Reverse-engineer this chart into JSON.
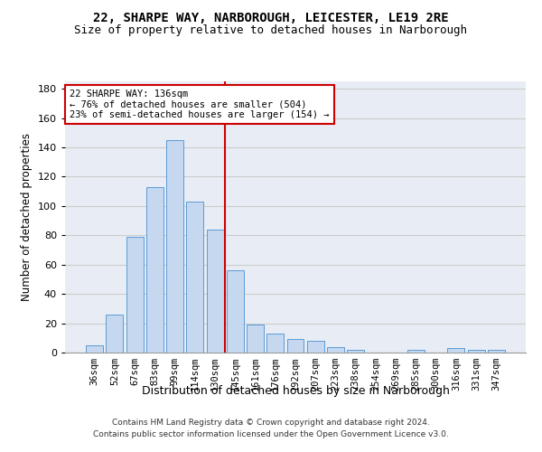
{
  "title1": "22, SHARPE WAY, NARBOROUGH, LEICESTER, LE19 2RE",
  "title2": "Size of property relative to detached houses in Narborough",
  "xlabel": "Distribution of detached houses by size in Narborough",
  "ylabel": "Number of detached properties",
  "categories": [
    "36sqm",
    "52sqm",
    "67sqm",
    "83sqm",
    "99sqm",
    "114sqm",
    "130sqm",
    "145sqm",
    "161sqm",
    "176sqm",
    "192sqm",
    "207sqm",
    "223sqm",
    "238sqm",
    "254sqm",
    "269sqm",
    "285sqm",
    "300sqm",
    "316sqm",
    "331sqm",
    "347sqm"
  ],
  "values": [
    5,
    26,
    79,
    113,
    145,
    103,
    84,
    56,
    19,
    13,
    9,
    8,
    4,
    2,
    0,
    0,
    2,
    0,
    3,
    2,
    2
  ],
  "bar_color": "#c5d8f0",
  "bar_edge_color": "#5b9bd5",
  "vline_color": "#cc0000",
  "annotation_text": "22 SHARPE WAY: 136sqm\n← 76% of detached houses are smaller (504)\n23% of semi-detached houses are larger (154) →",
  "annotation_box_color": "#ffffff",
  "annotation_box_edge": "#cc0000",
  "ylim": [
    0,
    185
  ],
  "yticks": [
    0,
    20,
    40,
    60,
    80,
    100,
    120,
    140,
    160,
    180
  ],
  "grid_color": "#cccccc",
  "background_color": "#e8edf5",
  "footer1": "Contains HM Land Registry data © Crown copyright and database right 2024.",
  "footer2": "Contains public sector information licensed under the Open Government Licence v3.0."
}
